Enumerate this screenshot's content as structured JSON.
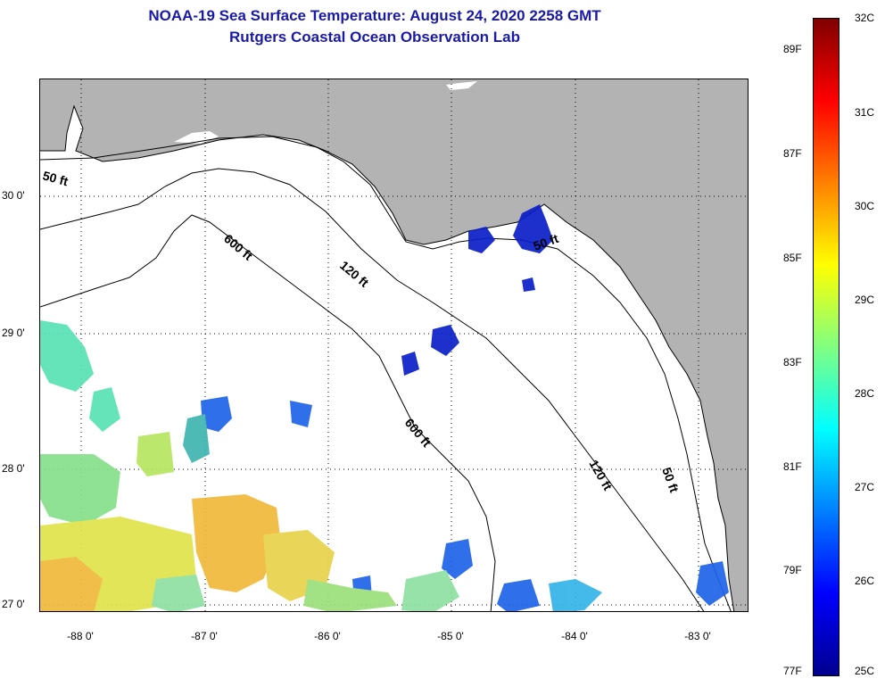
{
  "title_line1": "NOAA-19 Sea Surface Temperature:  August 24, 2020 2258 GMT",
  "title_line2": "Rutgers Coastal Ocean Observation Lab",
  "colors": {
    "land": "#b3b3b3",
    "water": "#ffffff",
    "title": "#1a1aa8"
  },
  "longitude_ticks": [
    {
      "value": -88,
      "label": "-88 0'"
    },
    {
      "value": -87,
      "label": "-87 0'"
    },
    {
      "value": -86,
      "label": "-86 0'"
    },
    {
      "value": -85,
      "label": "-85 0'"
    },
    {
      "value": -84,
      "label": "-84 0'"
    },
    {
      "value": -83,
      "label": "-83 0'"
    }
  ],
  "latitude_ticks": [
    {
      "value": 30,
      "label": "30 0'"
    },
    {
      "value": 29,
      "label": "29 0'"
    },
    {
      "value": 28,
      "label": "28 0'"
    },
    {
      "value": 27,
      "label": "27 0'"
    }
  ],
  "contour_labels": [
    {
      "text": "50 ft"
    },
    {
      "text": "600 ft"
    },
    {
      "text": "120 ft"
    },
    {
      "text": "50 ft"
    },
    {
      "text": "600 ft"
    },
    {
      "text": "120 ft"
    },
    {
      "text": "50 ft"
    }
  ],
  "colorbar": {
    "unit_c": "C",
    "unit_f": "F",
    "celsius_range": [
      25,
      32
    ],
    "celsius_labels": [
      "32C",
      "31C",
      "30C",
      "29C",
      "28C",
      "27C",
      "26C",
      "25C"
    ],
    "fahrenheit_labels": [
      "89F",
      "87F",
      "85F",
      "83F",
      "81F",
      "79F",
      "77F"
    ],
    "gradient_stops": [
      "#00008f",
      "#0000ff",
      "#0080ff",
      "#00ffff",
      "#80ff80",
      "#ffff00",
      "#ff8000",
      "#ff0000",
      "#800000"
    ]
  }
}
